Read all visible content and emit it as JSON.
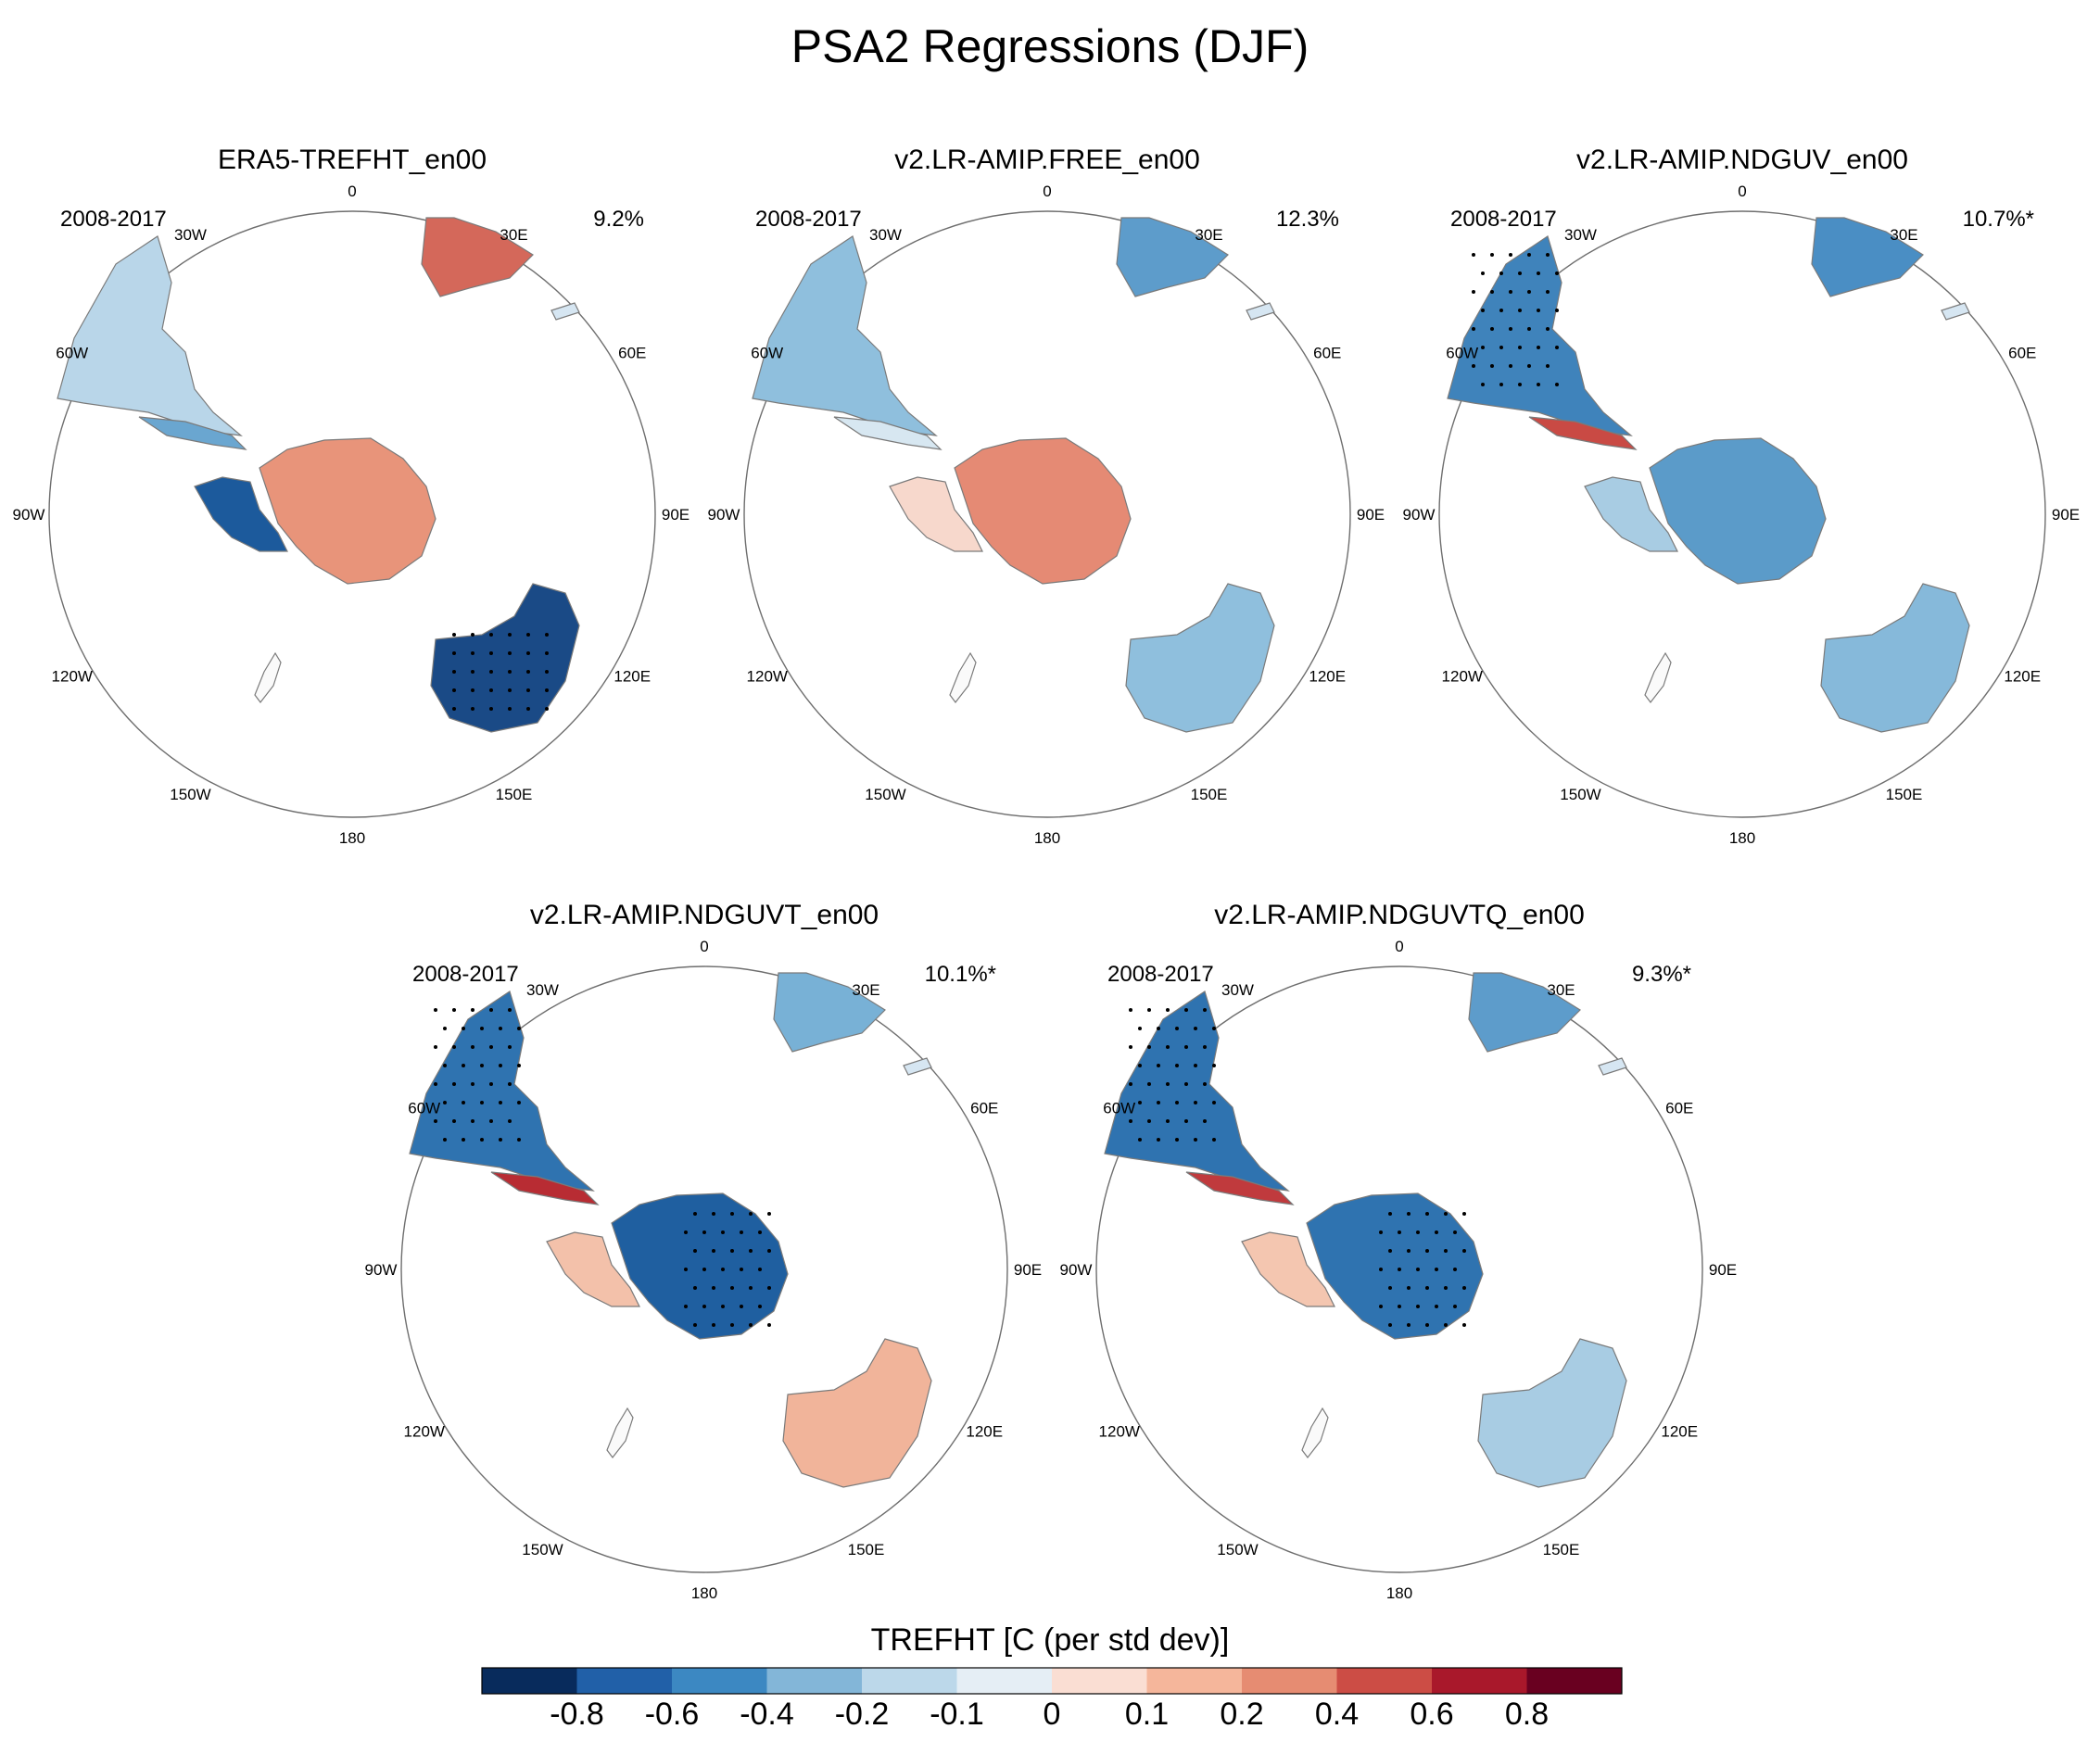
{
  "title": "PSA2 Regressions (DJF)",
  "panels": [
    {
      "title": "ERA5-TREFHT_en00",
      "period": "2008-2017",
      "percent": "9.2%",
      "antarctica": "#e8947a",
      "antarctica_west": "#1c5a9c",
      "south_america": "#b9d6e9",
      "sa_tip": "#6aa6d0",
      "africa": "#d4685a",
      "australia": "#1a4a86",
      "stippled_regions": [
        "australia"
      ]
    },
    {
      "title": "v2.LR-AMIP.FREE_en00",
      "period": "2008-2017",
      "percent": "12.3%",
      "antarctica": "#e58a74",
      "antarctica_west": "#f7d8cc",
      "south_america": "#8fbfdd",
      "sa_tip": "#d7e7f1",
      "africa": "#5d9ccb",
      "australia": "#8fbfdd",
      "stippled_regions": []
    },
    {
      "title": "v2.LR-AMIP.NDGUV_en00",
      "period": "2008-2017",
      "percent": "10.7%*",
      "antarctica": "#5b9bc9",
      "antarctica_west": "#a8cce3",
      "south_america": "#3f83bb",
      "sa_tip": "#c94a44",
      "africa": "#4a8ec4",
      "australia": "#86b9da",
      "stippled_regions": [
        "south_america"
      ]
    },
    {
      "title": "v2.LR-AMIP.NDGUVT_en00",
      "period": "2008-2017",
      "percent": "10.1%*",
      "antarctica": "#1f5fa0",
      "antarctica_west": "#f3c1aa",
      "south_america": "#2f73b0",
      "sa_tip": "#b82c33",
      "africa": "#78b1d6",
      "australia": "#f1b49a",
      "stippled_regions": [
        "south_america",
        "antarctica"
      ]
    },
    {
      "title": "v2.LR-AMIP.NDGUVTQ_en00",
      "period": "2008-2017",
      "percent": "9.3%*",
      "antarctica": "#2f73b0",
      "antarctica_west": "#f4c6b0",
      "south_america": "#2f73b0",
      "sa_tip": "#c03a3d",
      "africa": "#5d9ccb",
      "australia": "#a8cce3",
      "stippled_regions": [
        "south_america",
        "antarctica"
      ]
    }
  ],
  "longitude_labels": [
    "0",
    "30E",
    "60E",
    "90E",
    "120E",
    "150E",
    "180",
    "150W",
    "120W",
    "90W",
    "60W",
    "30W"
  ],
  "colorbar": {
    "title": "TREFHT [C (per std dev)]",
    "labels": [
      "-0.8",
      "-0.6",
      "-0.4",
      "-0.2",
      "-0.1",
      "0",
      "0.1",
      "0.2",
      "0.4",
      "0.6",
      "0.8"
    ],
    "colors": [
      "#082b5c",
      "#2160a8",
      "#3c88c2",
      "#83b6d8",
      "#bcd8ea",
      "#e5eef5",
      "#faded3",
      "#f5b69b",
      "#e68c72",
      "#cc4d45",
      "#a9182b",
      "#690020"
    ]
  }
}
